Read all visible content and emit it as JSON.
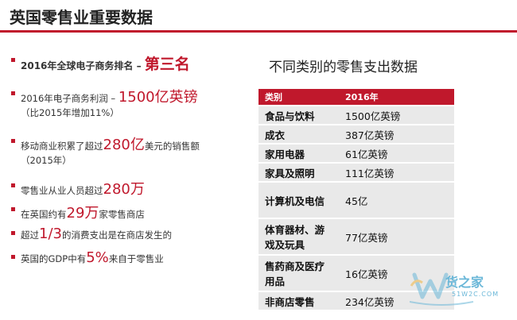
{
  "title": "英国零售业重要数据",
  "bullets": [
    {
      "pre": "2016年全球电子商务排名 – ",
      "hl": "第三名",
      "post": "",
      "sub": ""
    },
    {
      "pre": "2016年电子商务利润 – ",
      "hl": "1500亿英镑",
      "post": "",
      "sub": "（比2015年增加11%）"
    },
    {
      "pre": "移动商业积累了超过",
      "hl": "280亿",
      "post": "美元的销售额",
      "sub": "（2015年）"
    },
    {
      "pre": "零售业从业人员超过",
      "hl": "280万",
      "post": "",
      "sub": ""
    },
    {
      "pre": "在英国约有",
      "hl": "29万",
      "post": "家零售商店",
      "sub": ""
    },
    {
      "pre": "超过",
      "hl": "1/3",
      "post": "的消费支出是在商店发生的",
      "sub": ""
    },
    {
      "pre": "英国的GDP中有",
      "hl": "5%",
      "post": "来自于零售业",
      "sub": ""
    }
  ],
  "table": {
    "title": "不同类别的零售支出数据",
    "headers": [
      "类别",
      "2016年"
    ],
    "rows": [
      [
        "食品与饮料",
        "1500亿英镑"
      ],
      [
        "成衣",
        "387亿英镑"
      ],
      [
        "家用电器",
        "61亿英镑"
      ],
      [
        "家具及照明",
        "111亿英镑"
      ],
      [
        "计算机及电信",
        "45亿"
      ],
      [
        "体育器材、游戏及玩具",
        "77亿英镑"
      ],
      [
        "售药商及医疗用品",
        "16亿英镑"
      ],
      [
        "非商店零售",
        "234亿英镑"
      ]
    ]
  },
  "watermark": {
    "logo_text": "货之家",
    "site": "51W2C.COM",
    "icon": "w-logo-icon"
  },
  "colors": {
    "accent": "#c0182c",
    "cell": "#e9e9e9"
  }
}
